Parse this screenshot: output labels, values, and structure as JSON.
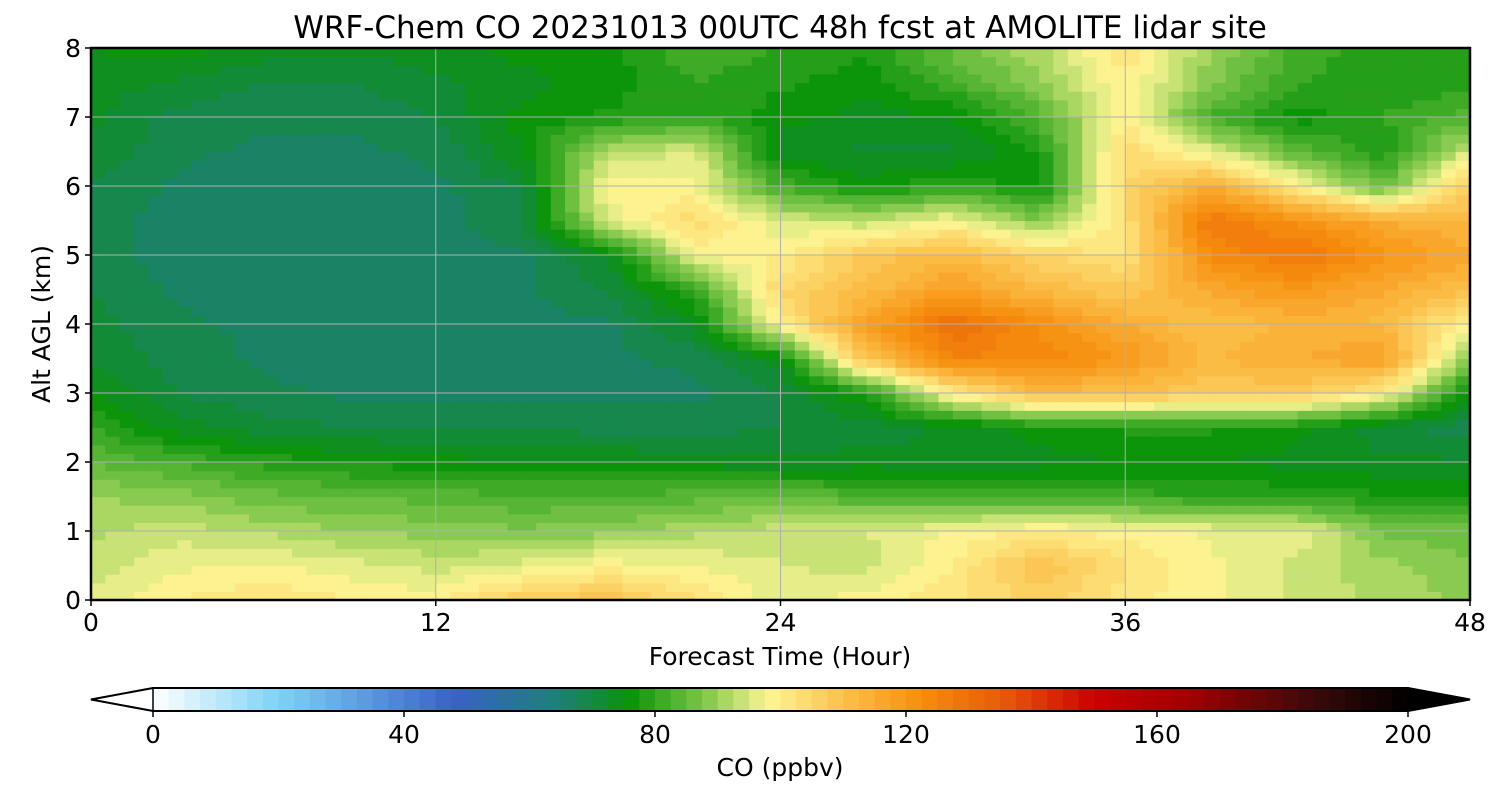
{
  "chart_data": {
    "type": "heatmap",
    "title": "WRF-Chem CO  20231013 00UTC 48h fcst at AMOLITE lidar site",
    "xlabel": "Forecast Time (Hour)",
    "ylabel": "Alt AGL (km)",
    "xlim": [
      0,
      48
    ],
    "ylim": [
      0,
      8
    ],
    "xticks": [
      0,
      12,
      24,
      36,
      48
    ],
    "xtick_labels": [
      "0",
      "12",
      "24",
      "36",
      "48"
    ],
    "yticks": [
      0,
      1,
      2,
      3,
      4,
      5,
      6,
      7,
      8
    ],
    "ytick_labels": [
      "0",
      "1",
      "2",
      "3",
      "4",
      "5",
      "6",
      "7",
      "8"
    ],
    "grid": true,
    "colorbar": {
      "label": "CO  (ppbv)",
      "range": [
        0,
        200
      ],
      "ticks": [
        0,
        40,
        80,
        120,
        160,
        200
      ],
      "tick_labels": [
        "0",
        "40",
        "80",
        "120",
        "160",
        "200"
      ],
      "extend": "both",
      "min_extend_color": "#ffffff",
      "max_extend_color": "#000000",
      "colormap_stops": [
        {
          "value": 0,
          "color": "#ffffff"
        },
        {
          "value": 20,
          "color": "#7ed2f6"
        },
        {
          "value": 48,
          "color": "#3a61c5"
        },
        {
          "value": 64,
          "color": "#1f7f7a"
        },
        {
          "value": 76,
          "color": "#0a930a"
        },
        {
          "value": 88,
          "color": "#80c84a"
        },
        {
          "value": 98,
          "color": "#fdf594"
        },
        {
          "value": 110,
          "color": "#fcc14c"
        },
        {
          "value": 122,
          "color": "#f7900e"
        },
        {
          "value": 136,
          "color": "#e5580a"
        },
        {
          "value": 150,
          "color": "#cc0000"
        },
        {
          "value": 165,
          "color": "#a00000"
        },
        {
          "value": 185,
          "color": "#3a0a0a"
        },
        {
          "value": 200,
          "color": "#000000"
        }
      ]
    },
    "hours": [
      0,
      3,
      6,
      9,
      12,
      15,
      18,
      21,
      24,
      27,
      30,
      33,
      36,
      39,
      42,
      45,
      48
    ],
    "altitudes_km": [
      0,
      0.5,
      1,
      1.5,
      2,
      2.5,
      3,
      3.5,
      4,
      4.5,
      5,
      5.5,
      6,
      6.5,
      7,
      7.5,
      8
    ],
    "values_ppbv": [
      [
        96,
        100,
        102,
        100,
        99,
        107,
        110,
        103,
        96,
        99,
        102,
        106,
        101,
        98,
        94,
        92,
        89
      ],
      [
        93,
        97,
        98,
        96,
        94,
        96,
        99,
        97,
        95,
        94,
        100,
        110,
        103,
        98,
        94,
        91,
        88
      ],
      [
        92,
        94,
        92,
        90,
        89,
        88,
        89,
        92,
        94,
        95,
        98,
        100,
        99,
        97,
        97,
        87,
        86
      ],
      [
        90,
        89,
        86,
        85,
        84,
        83,
        83,
        84,
        85,
        83,
        82,
        82,
        81,
        80,
        79,
        78,
        78
      ],
      [
        85,
        82,
        79,
        77,
        76,
        75,
        75,
        74,
        73,
        74,
        73,
        74,
        75,
        75,
        74,
        73,
        73
      ],
      [
        80,
        74,
        71,
        70,
        70,
        70,
        69,
        69,
        70,
        71,
        73,
        76,
        78,
        78,
        76,
        71,
        68
      ],
      [
        75,
        70,
        68,
        67,
        67,
        67,
        67,
        67,
        70,
        78,
        100,
        112,
        110,
        108,
        108,
        100,
        75
      ],
      [
        72,
        69,
        67,
        67,
        67,
        67,
        67,
        68,
        74,
        110,
        125,
        124,
        120,
        112,
        115,
        118,
        88
      ],
      [
        71,
        68,
        67,
        66,
        67,
        67,
        67,
        73,
        100,
        118,
        130,
        122,
        115,
        110,
        113,
        112,
        98
      ],
      [
        70,
        67,
        66,
        66,
        66,
        67,
        70,
        80,
        105,
        111,
        118,
        112,
        108,
        116,
        120,
        115,
        110
      ],
      [
        69,
        66,
        65,
        65,
        66,
        67,
        73,
        98,
        100,
        108,
        112,
        105,
        102,
        123,
        128,
        121,
        116
      ],
      [
        69,
        66,
        65,
        65,
        66,
        70,
        95,
        104,
        95,
        93,
        98,
        88,
        103,
        128,
        122,
        115,
        112
      ],
      [
        70,
        67,
        66,
        66,
        67,
        70,
        100,
        98,
        82,
        76,
        80,
        76,
        105,
        115,
        100,
        85,
        108
      ],
      [
        72,
        68,
        67,
        67,
        68,
        75,
        92,
        96,
        73,
        72,
        72,
        78,
        104,
        96,
        84,
        78,
        95
      ],
      [
        73,
        69,
        68,
        68,
        70,
        76,
        78,
        80,
        76,
        74,
        75,
        83,
        100,
        82,
        76,
        80,
        84
      ],
      [
        74,
        72,
        70,
        70,
        72,
        74,
        76,
        80,
        78,
        76,
        82,
        89,
        100,
        88,
        80,
        78,
        79
      ],
      [
        75,
        76,
        74,
        73,
        74,
        76,
        77,
        82,
        80,
        78,
        86,
        92,
        102,
        90,
        82,
        78,
        78
      ]
    ]
  }
}
